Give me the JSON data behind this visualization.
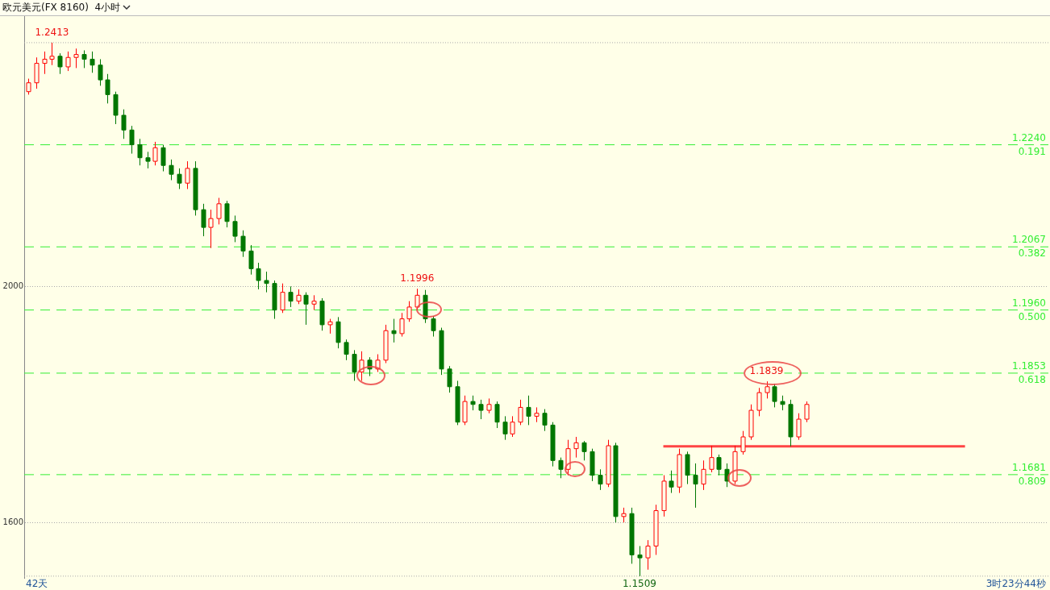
{
  "chart_data": {
    "type": "candlestick",
    "title": "欧元美元(FX 8160)  4小时",
    "categories": [
      null,
      null,
      null,
      null,
      null,
      null,
      null,
      null,
      null,
      null,
      null,
      null,
      null,
      null,
      null,
      null,
      null,
      null,
      null,
      null,
      null,
      null,
      null,
      null,
      null,
      null,
      null,
      null,
      null,
      null,
      null,
      null,
      null,
      null,
      null,
      null,
      null,
      null,
      null,
      null,
      null,
      null,
      null,
      null,
      null,
      null,
      null,
      null,
      null,
      null,
      null,
      null,
      null,
      null,
      null,
      null,
      null,
      null,
      null,
      null,
      null,
      null,
      null,
      null,
      null,
      null,
      null,
      null,
      null,
      null,
      null,
      null,
      null,
      null,
      null,
      null,
      null,
      null,
      null,
      null,
      null,
      null,
      null,
      null,
      null,
      null,
      null,
      null,
      null,
      null,
      null,
      null,
      null,
      null,
      null,
      null,
      null,
      null,
      null,
      null,
      null,
      null,
      null,
      null,
      null,
      null,
      null,
      null,
      null,
      null,
      null,
      null,
      null,
      null,
      null,
      null,
      null,
      null,
      null,
      null,
      null,
      null,
      null,
      null,
      null,
      null,
      null,
      null,
      null
    ],
    "ohlc": [
      [
        2330,
        2352,
        2325,
        2345
      ],
      [
        2345,
        2388,
        2335,
        2378
      ],
      [
        2378,
        2398,
        2360,
        2385
      ],
      [
        2385,
        2413,
        2375,
        2390
      ],
      [
        2390,
        2395,
        2360,
        2372
      ],
      [
        2372,
        2398,
        2365,
        2388
      ],
      [
        2388,
        2403,
        2370,
        2393
      ],
      [
        2393,
        2400,
        2370,
        2385
      ],
      [
        2385,
        2398,
        2362,
        2375
      ],
      [
        2375,
        2385,
        2340,
        2350
      ],
      [
        2350,
        2360,
        2310,
        2325
      ],
      [
        2325,
        2330,
        2275,
        2290
      ],
      [
        2290,
        2300,
        2250,
        2265
      ],
      [
        2265,
        2272,
        2225,
        2240
      ],
      [
        2240,
        2250,
        2205,
        2218
      ],
      [
        2218,
        2228,
        2200,
        2212
      ],
      [
        2212,
        2245,
        2205,
        2235
      ],
      [
        2235,
        2240,
        2195,
        2205
      ],
      [
        2205,
        2215,
        2180,
        2190
      ],
      [
        2190,
        2200,
        2165,
        2175
      ],
      [
        2175,
        2212,
        2165,
        2200
      ],
      [
        2200,
        2212,
        2120,
        2130
      ],
      [
        2130,
        2140,
        2085,
        2100
      ],
      [
        2100,
        2130,
        2065,
        2115
      ],
      [
        2115,
        2150,
        2105,
        2140
      ],
      [
        2140,
        2145,
        2100,
        2110
      ],
      [
        2110,
        2120,
        2075,
        2085
      ],
      [
        2085,
        2095,
        2050,
        2060
      ],
      [
        2060,
        2070,
        2020,
        2030
      ],
      [
        2030,
        2040,
        1995,
        2010
      ],
      [
        2010,
        2025,
        1990,
        2005
      ],
      [
        2005,
        2010,
        1945,
        1960
      ],
      [
        1960,
        2005,
        1955,
        1990
      ],
      [
        1990,
        2000,
        1965,
        1975
      ],
      [
        1975,
        1995,
        1970,
        1985
      ],
      [
        1985,
        1990,
        1935,
        1970
      ],
      [
        1970,
        1985,
        1960,
        1975
      ],
      [
        1975,
        1980,
        1925,
        1935
      ],
      [
        1935,
        1945,
        1920,
        1940
      ],
      [
        1940,
        1948,
        1895,
        1905
      ],
      [
        1905,
        1910,
        1875,
        1885
      ],
      [
        1885,
        1892,
        1840,
        1855
      ],
      [
        1855,
        1890,
        1840,
        1875
      ],
      [
        1875,
        1880,
        1848,
        1860
      ],
      [
        1860,
        1885,
        1855,
        1875
      ],
      [
        1875,
        1935,
        1870,
        1925
      ],
      [
        1925,
        1945,
        1905,
        1920
      ],
      [
        1920,
        1955,
        1915,
        1945
      ],
      [
        1945,
        1975,
        1940,
        1965
      ],
      [
        1965,
        1996,
        1960,
        1985
      ],
      [
        1985,
        1994,
        1938,
        1945
      ],
      [
        1945,
        1950,
        1915,
        1925
      ],
      [
        1925,
        1930,
        1850,
        1860
      ],
      [
        1860,
        1865,
        1820,
        1830
      ],
      [
        1830,
        1840,
        1765,
        1770
      ],
      [
        1770,
        1815,
        1765,
        1805
      ],
      [
        1805,
        1815,
        1790,
        1800
      ],
      [
        1800,
        1808,
        1775,
        1790
      ],
      [
        1790,
        1810,
        1785,
        1800
      ],
      [
        1800,
        1805,
        1760,
        1770
      ],
      [
        1770,
        1780,
        1740,
        1750
      ],
      [
        1750,
        1780,
        1745,
        1770
      ],
      [
        1770,
        1808,
        1765,
        1795
      ],
      [
        1795,
        1815,
        1765,
        1780
      ],
      [
        1780,
        1795,
        1770,
        1785
      ],
      [
        1785,
        1792,
        1755,
        1765
      ],
      [
        1765,
        1770,
        1695,
        1705
      ],
      [
        1705,
        1710,
        1675,
        1690
      ],
      [
        1690,
        1740,
        1680,
        1725
      ],
      [
        1725,
        1745,
        1710,
        1735
      ],
      [
        1735,
        1738,
        1705,
        1720
      ],
      [
        1720,
        1725,
        1670,
        1680
      ],
      [
        1680,
        1690,
        1655,
        1665
      ],
      [
        1665,
        1740,
        1660,
        1730
      ],
      [
        1730,
        1735,
        1600,
        1610
      ],
      [
        1610,
        1625,
        1600,
        1615
      ],
      [
        1615,
        1625,
        1530,
        1545
      ],
      [
        1545,
        1560,
        1509,
        1540
      ],
      [
        1540,
        1570,
        1520,
        1560
      ],
      [
        1560,
        1630,
        1545,
        1620
      ],
      [
        1620,
        1680,
        1610,
        1670
      ],
      [
        1670,
        1688,
        1650,
        1660
      ],
      [
        1660,
        1725,
        1650,
        1715
      ],
      [
        1715,
        1720,
        1665,
        1680
      ],
      [
        1680,
        1700,
        1625,
        1665
      ],
      [
        1665,
        1705,
        1655,
        1690
      ],
      [
        1690,
        1730,
        1685,
        1710
      ],
      [
        1710,
        1715,
        1680,
        1690
      ],
      [
        1690,
        1700,
        1660,
        1670
      ],
      [
        1670,
        1730,
        1665,
        1720
      ],
      [
        1720,
        1755,
        1715,
        1745
      ],
      [
        1745,
        1800,
        1740,
        1790
      ],
      [
        1790,
        1828,
        1780,
        1820
      ],
      [
        1820,
        1839,
        1810,
        1830
      ],
      [
        1830,
        1835,
        1795,
        1805
      ],
      [
        1805,
        1815,
        1790,
        1800
      ],
      [
        1800,
        1808,
        1729,
        1745
      ],
      [
        1745,
        1785,
        1740,
        1775
      ],
      [
        1775,
        1805,
        1770,
        1800
      ],
      null,
      null,
      null,
      null,
      null,
      null,
      null,
      null,
      null,
      null,
      null,
      null,
      null,
      null,
      null,
      null,
      null,
      null,
      null,
      null,
      null,
      null,
      null,
      null,
      null,
      null,
      null,
      null,
      null,
      null
    ],
    "colors": [
      "#ff0000",
      "#ff0000",
      "#ff0000",
      "#ff0000",
      "#007700",
      "#ff0000",
      "#ff0000",
      "#007700",
      "#007700",
      "#007700",
      "#007700",
      "#007700",
      "#007700",
      "#007700",
      "#007700",
      "#007700",
      "#ff0000",
      "#007700",
      "#007700",
      "#007700",
      "#ff0000",
      "#007700",
      "#007700",
      "#ff0000",
      "#ff0000",
      "#007700",
      "#007700",
      "#007700",
      "#007700",
      "#007700",
      "#007700",
      "#007700",
      "#ff0000",
      "#007700",
      "#ff0000",
      "#007700",
      "#ff0000",
      "#007700",
      "#ff0000",
      "#007700",
      "#007700",
      "#007700",
      "#ff0000",
      "#007700",
      "#ff0000",
      "#ff0000",
      "#007700",
      "#ff0000",
      "#ff0000",
      "#ff0000",
      "#007700",
      "#007700",
      "#007700",
      "#007700",
      "#007700",
      "#ff0000",
      "#007700",
      "#007700",
      "#ff0000",
      "#007700",
      "#007700",
      "#ff0000",
      "#ff0000",
      "#007700",
      "#ff0000",
      "#007700",
      "#007700",
      "#007700",
      "#ff0000",
      "#ff0000",
      "#007700",
      "#007700",
      "#007700",
      "#ff0000",
      "#007700",
      "#ff0000",
      "#007700",
      "#007700",
      "#ff0000",
      "#ff0000",
      "#ff0000",
      "#007700",
      "#ff0000",
      "#007700",
      "#007700",
      "#ff0000",
      "#ff0000",
      "#007700",
      "#007700",
      "#ff0000",
      "#ff0000",
      "#ff0000",
      "#ff0000",
      "#ff0000",
      "#007700",
      "#007700",
      "#007700",
      "#ff0000",
      "#ff0000",
      null,
      null,
      null,
      null,
      null,
      null,
      null,
      null,
      null,
      null,
      null,
      null,
      null,
      null,
      null,
      null,
      null,
      null,
      null,
      null,
      null,
      null,
      null,
      null,
      null,
      null,
      null,
      null,
      null,
      null
    ],
    "series": [
      {
        "type": "line",
        "color": "#ff4444",
        "values": [
          null,
          null,
          null,
          null,
          null,
          null,
          null,
          null,
          null,
          null,
          null,
          null,
          null,
          null,
          null,
          null,
          null,
          null,
          null,
          null,
          null,
          null,
          null,
          null,
          null,
          null,
          null,
          null,
          null,
          null,
          null,
          null,
          null,
          null,
          null,
          null,
          null,
          null,
          null,
          null,
          null,
          null,
          null,
          null,
          null,
          null,
          null,
          null,
          null,
          null,
          null,
          null,
          null,
          null,
          null,
          null,
          null,
          null,
          null,
          null,
          null,
          null,
          null,
          null,
          null,
          null,
          null,
          null,
          null,
          null,
          null,
          null,
          null,
          null,
          null,
          null,
          null,
          null,
          null,
          null,
          1729,
          1729,
          1729,
          1729,
          1729,
          1729,
          1729,
          1729,
          1729,
          1729,
          1729,
          1729,
          1729,
          1729,
          1729,
          1729,
          1729,
          1729,
          1729,
          1729,
          1729,
          1729,
          1729,
          1729,
          1729,
          1729,
          1729,
          1729,
          1729,
          1729,
          1729,
          1729,
          1729,
          1729,
          1729,
          1729,
          1729,
          1729,
          1729,
          null,
          null,
          null,
          null,
          null,
          null,
          null,
          null,
          null,
          null
        ]
      }
    ],
    "ylim": [
      1506,
      2458
    ],
    "yticks": [
      2000,
      1600
    ],
    "grid": "y",
    "ref_lines": [
      {
        "axis": "y",
        "value": 2413,
        "color": "#aaaaaa",
        "line_style": "dotted"
      },
      {
        "axis": "y",
        "value": 1509,
        "color": "#aaaaaa",
        "line_style": "dotted"
      },
      {
        "axis": "y",
        "value": 2240,
        "color": "#33ee33",
        "line_style": "dashed"
      },
      {
        "axis": "y",
        "value": 2067,
        "color": "#33ee33",
        "line_style": "dashed"
      },
      {
        "axis": "y",
        "value": 1960,
        "color": "#33ee33",
        "line_style": "dashed"
      },
      {
        "axis": "y",
        "value": 1853,
        "color": "#33ee33",
        "line_style": "dashed"
      },
      {
        "axis": "y",
        "value": 1681,
        "color": "#33ee33",
        "line_style": "dashed"
      }
    ],
    "annotations": [
      {
        "text": "1.2413",
        "y": 2413
      },
      {
        "text": "1.1996",
        "y": 1996
      },
      {
        "text": "1.1839",
        "y": 1839
      },
      {
        "text": "1.1509",
        "y": 1509
      },
      {
        "text": "1.2240",
        "y": 2240
      },
      {
        "text": "0.191",
        "y": 2240
      },
      {
        "text": "1.2067",
        "y": 2067
      },
      {
        "text": "0.382",
        "y": 2067
      },
      {
        "text": "1.1960",
        "y": 1960
      },
      {
        "text": "0.500",
        "y": 1960
      },
      {
        "text": "1.1853",
        "y": 1853
      },
      {
        "text": "0.618",
        "y": 1853
      },
      {
        "text": "1.1681",
        "y": 1681
      },
      {
        "text": "0.809",
        "y": 1681
      },
      "42天",
      "3时23分44秒"
    ]
  }
}
